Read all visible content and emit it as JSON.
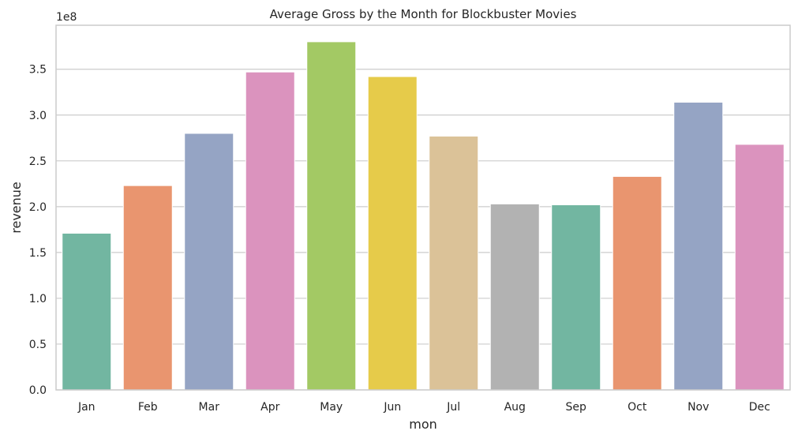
{
  "chart_data": {
    "type": "bar",
    "title": "Average Gross by the Month for Blockbuster Movies",
    "xlabel": "mon",
    "ylabel": "revenue",
    "offset_text": "1e8",
    "categories": [
      "Jan",
      "Feb",
      "Mar",
      "Apr",
      "May",
      "Jun",
      "Jul",
      "Aug",
      "Sep",
      "Oct",
      "Nov",
      "Dec"
    ],
    "values": [
      171000000,
      223000000,
      280000000,
      347000000,
      380000000,
      342000000,
      277000000,
      203000000,
      202000000,
      233000000,
      314000000,
      268000000
    ],
    "colors": [
      "#72b6a1",
      "#e9956f",
      "#95a4c4",
      "#db93be",
      "#a3c964",
      "#e6cb4a",
      "#dbc298",
      "#b2b2b2",
      "#72b6a1",
      "#e9956f",
      "#95a4c4",
      "#db93be"
    ],
    "ylim": [
      0,
      398000000
    ],
    "yticks": [
      0,
      50000000,
      100000000,
      150000000,
      200000000,
      250000000,
      300000000,
      350000000
    ],
    "ytick_labels": [
      "0.0",
      "0.5",
      "1.0",
      "1.5",
      "2.0",
      "2.5",
      "3.0",
      "3.5"
    ],
    "grid": true,
    "legend": "none"
  }
}
